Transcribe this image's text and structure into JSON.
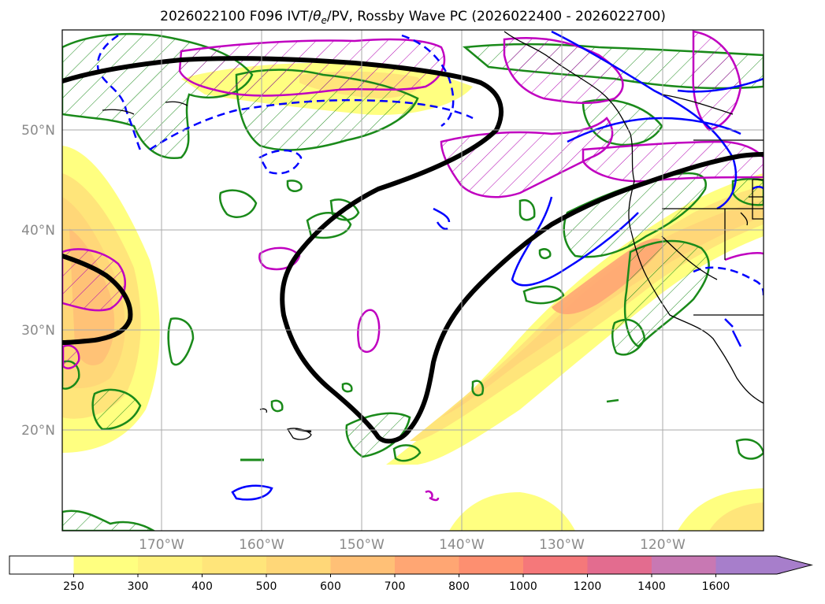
{
  "title": {
    "prefix": "2026022100 F096 IVT/",
    "theta": "θ",
    "theta_sub": "e",
    "suffix": "/PV, Rossby Wave PC (2026022400 - 2026022700)"
  },
  "map": {
    "lat_labels": [
      "50°N",
      "40°N",
      "30°N",
      "20°N"
    ],
    "lon_labels": [
      "170°W",
      "160°W",
      "150°W",
      "140°W",
      "130°W",
      "120°W"
    ]
  },
  "colorbar": {
    "levels": [
      "250",
      "300",
      "400",
      "500",
      "600",
      "700",
      "800",
      "1000",
      "1200",
      "1400",
      "1600"
    ],
    "colors": [
      "#ffff80",
      "#fff27d",
      "#ffe57a",
      "#ffd778",
      "#ffc076",
      "#ffa673",
      "#fd8f70",
      "#f5787a",
      "#e36c8f",
      "#c878b3",
      "#a77ecb"
    ]
  },
  "legend_colors": {
    "ivt_fill": "#ffd778",
    "rossby_pc": "#000000",
    "pv_positive": "#1a8a1a",
    "pv_negative": "#c000c0",
    "theta_e": "#0000ff"
  }
}
